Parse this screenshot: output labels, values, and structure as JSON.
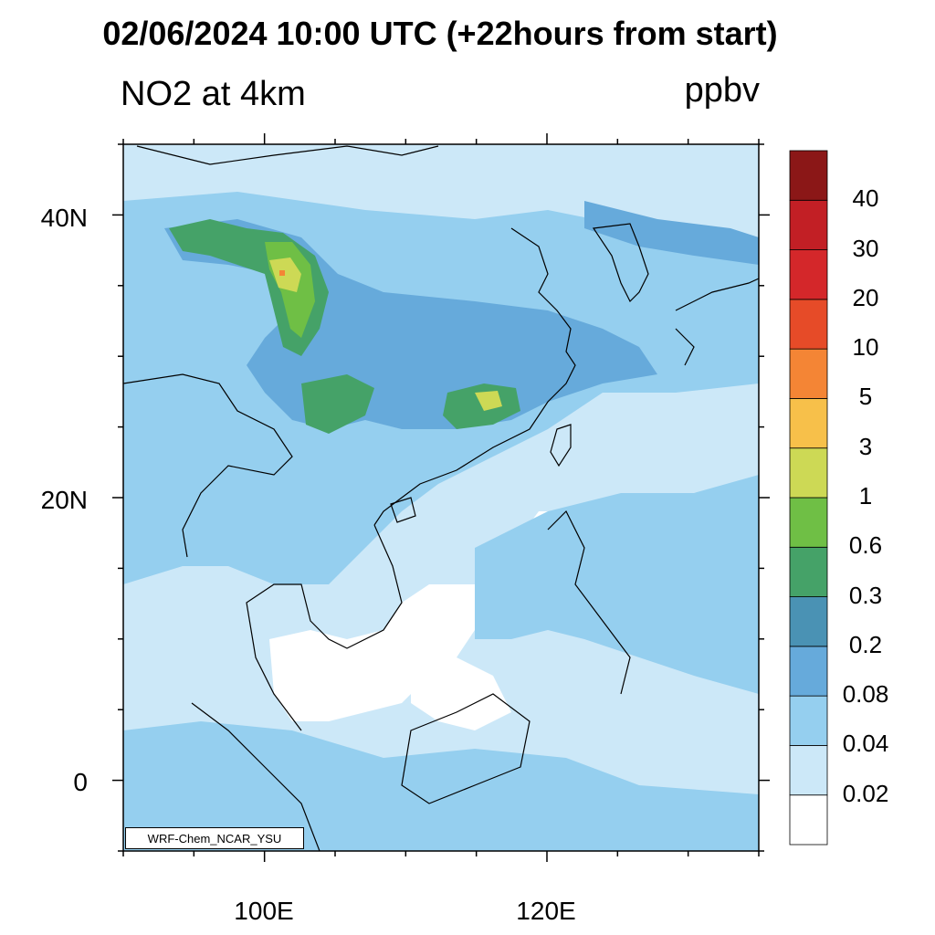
{
  "title": "02/06/2024 10:00 UTC (+22hours from start)",
  "subtitle_left": "NO2 at 4km",
  "subtitle_right": "ppbv",
  "credit": "WRF-Chem_NCAR_YSU",
  "lat_labels": [
    "40N",
    "20N",
    "0"
  ],
  "lon_labels": [
    "100E",
    "120E"
  ],
  "colorbar": {
    "levels": [
      "0.02",
      "0.04",
      "0.08",
      "0.2",
      "0.3",
      "0.6",
      "1",
      "3",
      "5",
      "10",
      "20",
      "30",
      "40"
    ],
    "colors": [
      "#ffffff",
      "#cce8f8",
      "#95cfef",
      "#66aadb",
      "#4a92b4",
      "#45a268",
      "#6fbf45",
      "#cdd955",
      "#f7c04a",
      "#f48535",
      "#e64b28",
      "#d4272a",
      "#c21f25",
      "#8b1717"
    ]
  },
  "map": {
    "lon_range": [
      90,
      135
    ],
    "lat_range": [
      -5,
      45
    ],
    "region_colors": {
      "background": "#cce8f8",
      "band": "#95cfef",
      "band_dark": "#66aadb",
      "plume_green": "#45a268",
      "plume_lightgreen": "#6fbf45",
      "plume_yellow": "#cdd955",
      "hotspot": "#f48535",
      "clean": "#ffffff"
    }
  }
}
